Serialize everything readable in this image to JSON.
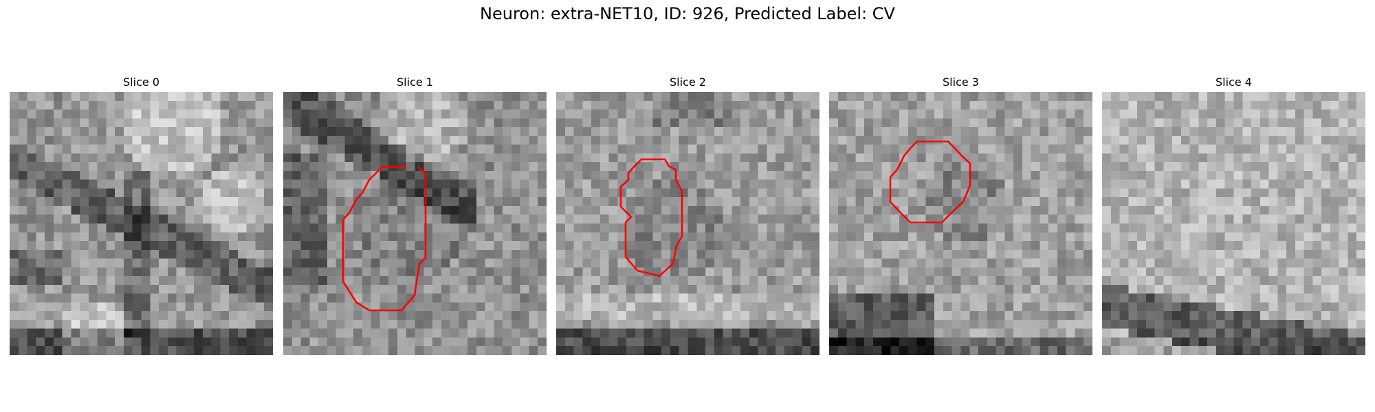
{
  "title": "Neuron: extra-NET10, ID: 926, Predicted Label: CV",
  "contour_color": "#ff0000",
  "slices": [
    {
      "label": "Slice 0",
      "has_contour": false,
      "feature": "dark-branches-dark-bottom"
    },
    {
      "label": "Slice 1",
      "has_contour": true,
      "feature": "dark-diagonal-band"
    },
    {
      "label": "Slice 2",
      "has_contour": true,
      "feature": "dark-bottom-band"
    },
    {
      "label": "Slice 3",
      "has_contour": true,
      "feature": "dark-bottom-left"
    },
    {
      "label": "Slice 4",
      "has_contour": false,
      "feature": "dark-lower-band"
    }
  ]
}
